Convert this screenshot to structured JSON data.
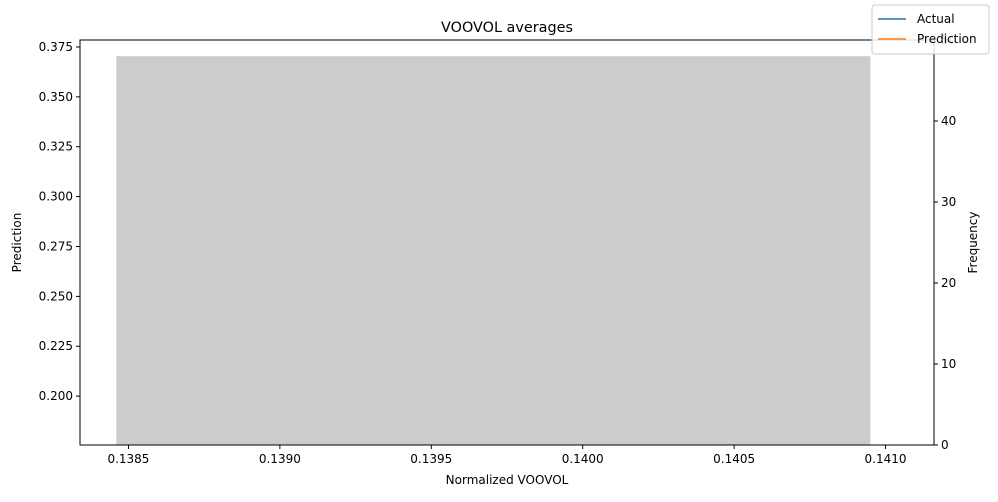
{
  "chart_data": {
    "type": "bar",
    "title": "VOOVOL averages",
    "xlabel": "Normalized VOOVOL",
    "ylabel": "Prediction",
    "y2label": "Frequency",
    "xlim": [
      0.13834,
      0.14116
    ],
    "ylim": [
      0.1755,
      0.3785
    ],
    "y2lim": [
      0,
      50
    ],
    "xticks": [
      "0.1385",
      "0.1390",
      "0.1395",
      "0.1400",
      "0.1405",
      "0.1410"
    ],
    "yticks": [
      "0.200",
      "0.225",
      "0.250",
      "0.275",
      "0.300",
      "0.325",
      "0.350",
      "0.375"
    ],
    "y2ticks": [
      "0",
      "10",
      "20",
      "30",
      "40",
      "50"
    ],
    "histogram": {
      "bins": [
        {
          "x0": 0.13846,
          "x1": 0.14095,
          "count": 48
        }
      ],
      "color": "#cccccc",
      "axis": "right"
    },
    "series": [
      {
        "name": "Actual",
        "color": "#1f77b4",
        "x": [],
        "y": []
      },
      {
        "name": "Prediction",
        "color": "#ff7f0e",
        "x": [],
        "y": []
      }
    ],
    "legend": "top-right",
    "grid": false
  }
}
